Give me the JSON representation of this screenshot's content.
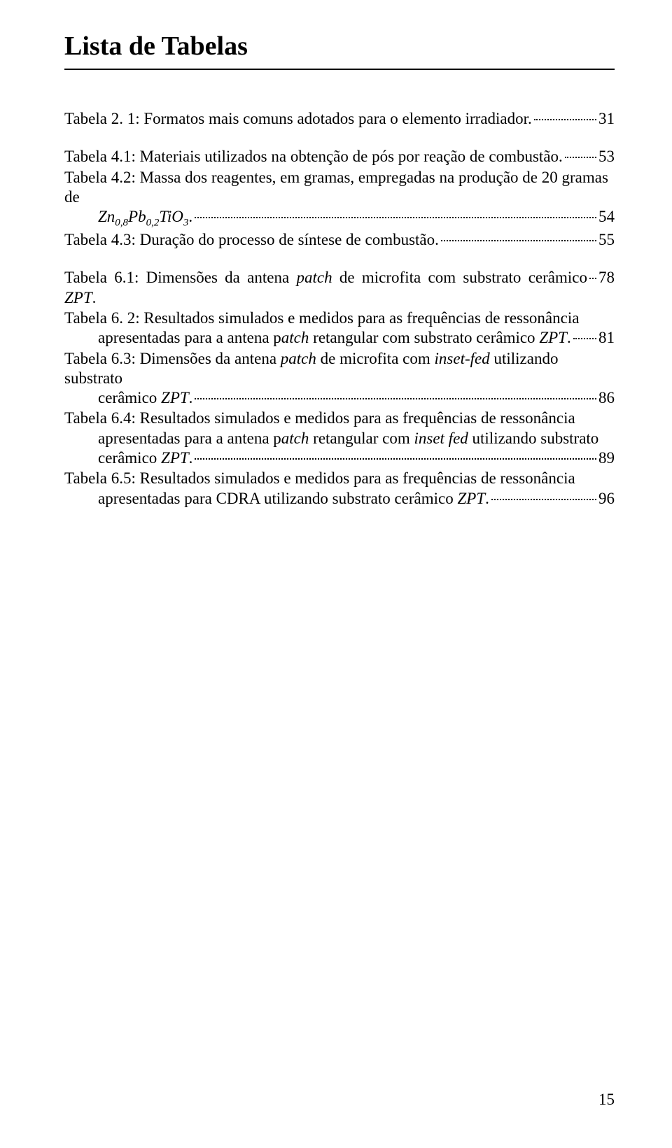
{
  "title": "Lista de Tabelas",
  "page_number": "15",
  "entries": [
    {
      "type": "single",
      "text": "Tabela 2. 1: Formatos mais comuns adotados para o elemento irradiador.",
      "page": "31",
      "gap_after": true
    },
    {
      "type": "single",
      "text": "Tabela 4.1: Materiais utilizados na obtenção de pós por reação de combustão.",
      "page": "53",
      "gap_after": false
    },
    {
      "type": "multi",
      "lines": [
        "Tabela 4.2: Massa dos reagentes, em gramas, empregadas na produção de 20 gramas de"
      ],
      "last_line_prefix": "",
      "last_line_html": "<span class=\"italic\">Zn</span><span class=\"italic sub\">0,8</span><span class=\"italic\">Pb</span><span class=\"italic sub\">0,2</span><span class=\"italic\">TiO</span><span class=\"italic sub\">3</span>. ",
      "page": "54",
      "indented": true,
      "gap_after": false
    },
    {
      "type": "single",
      "text": "Tabela 4.3: Duração do processo de síntese de combustão.",
      "page": "55",
      "gap_after": true
    },
    {
      "type": "single_html",
      "html": "Tabela 6.1: Dimensões da antena <span class=\"italic\">patch</span> de microfita com substrato cerâmico <span class=\"italic\">ZPT</span>.",
      "page": "78",
      "gap_after": false
    },
    {
      "type": "multi",
      "lines": [
        "Tabela 6. 2: Resultados simulados e medidos para as frequências de ressonância"
      ],
      "last_line_prefix": "",
      "last_line_html": "apresentadas para a antena p<span class=\"italic\">atch</span> retangular com substrato cerâmico <span class=\"italic\">ZPT</span>.",
      "page": "81",
      "indented": true,
      "gap_after": false
    },
    {
      "type": "multi",
      "lines_html": [
        "Tabela 6.3: Dimensões da antena <span class=\"italic\">patch</span> de microfita com <span class=\"italic\">inset-fed</span> utilizando substrato"
      ],
      "last_line_html": "cerâmico <span class=\"italic\">ZPT</span>.",
      "page": "86",
      "indented": true,
      "gap_after": false
    },
    {
      "type": "multi",
      "lines_html": [
        "Tabela 6.4: Resultados simulados e medidos para as frequências de ressonância",
        "apresentadas para a antena p<span class=\"italic\">atch</span> retangular com <span class=\"italic\">inset fed</span> utilizando substrato"
      ],
      "last_line_html": "cerâmico <span class=\"italic\">ZPT</span>.",
      "page": "89",
      "indented_lines": [
        false,
        true
      ],
      "indented": true,
      "gap_after": false
    },
    {
      "type": "multi",
      "lines": [
        "Tabela 6.5: Resultados simulados e medidos para as frequências de ressonância"
      ],
      "last_line_html": "apresentadas para CDRA utilizando substrato cerâmico <span class=\"italic\">ZPT</span>.",
      "page": "96",
      "indented": true,
      "gap_after": false
    }
  ]
}
